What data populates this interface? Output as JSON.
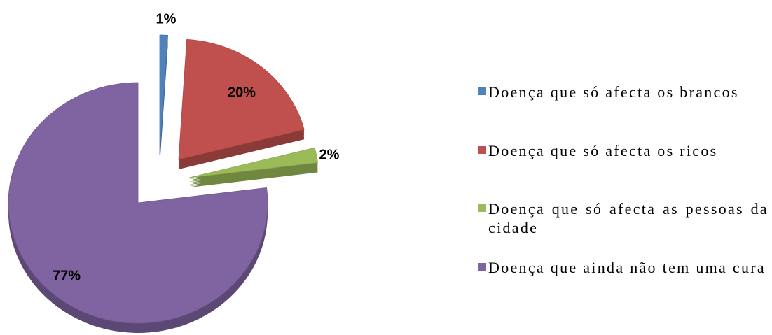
{
  "chart_data": {
    "type": "pie",
    "categories": [
      "Doença que só afecta os brancos",
      "Doença que só afecta os ricos",
      "Doença que só afecta as pessoas da cidade",
      "Doença que ainda não tem uma cura"
    ],
    "values": [
      1,
      20,
      2,
      77
    ],
    "value_labels": [
      "1%",
      "20%",
      "2%",
      "77%"
    ],
    "colors": [
      "#4f81bd",
      "#c0504d",
      "#9bbb59",
      "#8064a2"
    ],
    "legend": "right"
  }
}
